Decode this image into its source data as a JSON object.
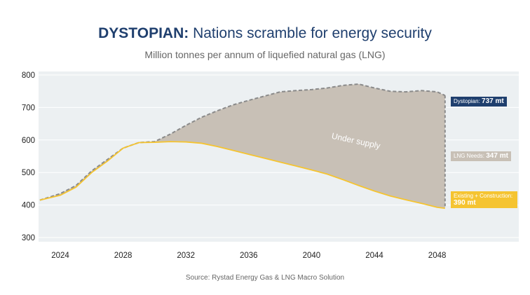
{
  "title_bold": "DYSTOPIAN:",
  "title_rest": " Nations scramble for energy security",
  "subtitle": "Million tonnes per annum of liquefied natural gas (LNG)",
  "source": "Source: Rystad Energy Gas & LNG Macro Solution",
  "colors": {
    "demand": "#c8c0b6",
    "supply": "#f5c431",
    "dystopian": "#1f3f6e",
    "background": "#ecf0f2",
    "dash": "#8a8a8a"
  },
  "chart_data": {
    "type": "area",
    "title": "DYSTOPIAN: Nations scramble for energy security",
    "ylabel": "Million tonnes per annum of liquefied natural gas (LNG)",
    "ylim": [
      300,
      800
    ],
    "xlim": [
      2022.7,
      2050.7
    ],
    "yticks": [
      "300",
      "400",
      "500",
      "600",
      "700",
      "800"
    ],
    "xticks": [
      "2024",
      "2028",
      "2032",
      "2036",
      "2040",
      "2044",
      "2048"
    ],
    "grid": "horizontal",
    "annotation": "Under supply",
    "x": [
      2022.7,
      2024,
      2025,
      2026,
      2027,
      2028,
      2029,
      2030,
      2031,
      2032,
      2033,
      2034,
      2035,
      2036,
      2037,
      2038,
      2039,
      2040,
      2041,
      2042,
      2043,
      2044,
      2045,
      2046,
      2047,
      2048,
      2048.5
    ],
    "series": [
      {
        "name": "Dystopian",
        "values": [
          415,
          435,
          460,
          505,
          540,
          575,
          592,
          595,
          618,
          645,
          670,
          690,
          708,
          722,
          735,
          748,
          752,
          755,
          760,
          768,
          772,
          760,
          750,
          748,
          752,
          748,
          737
        ]
      },
      {
        "name": "Existing + Construction",
        "values": [
          415,
          430,
          455,
          500,
          535,
          575,
          592,
          593,
          595,
          594,
          590,
          580,
          568,
          556,
          544,
          532,
          520,
          508,
          495,
          478,
          460,
          443,
          428,
          416,
          405,
          393,
          390
        ]
      }
    ],
    "labels": [
      {
        "prefix": "Dystopian: ",
        "value": "737 mt"
      },
      {
        "prefix": "LNG Needs: ",
        "value": "347 mt"
      },
      {
        "prefix": "Existing + Construction: ",
        "value": "390 mt"
      }
    ]
  }
}
